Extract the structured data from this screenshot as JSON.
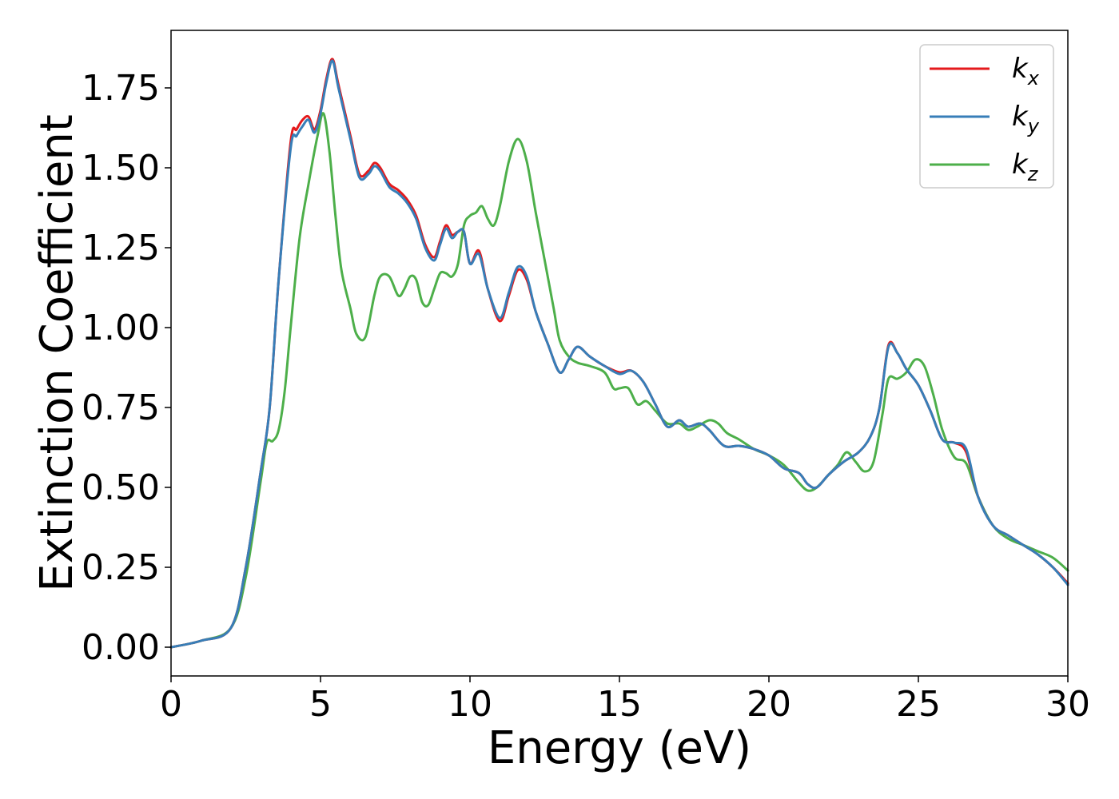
{
  "chart_data": {
    "type": "line",
    "title": "",
    "xlabel": "Energy (eV)",
    "ylabel": "Extinction Coefficient",
    "xlim": [
      0,
      30
    ],
    "ylim": [
      -0.09,
      1.93
    ],
    "xticks": [
      0,
      5,
      10,
      15,
      20,
      25,
      30
    ],
    "xtick_labels": [
      "0",
      "5",
      "10",
      "15",
      "20",
      "25",
      "30"
    ],
    "yticks": [
      0.0,
      0.25,
      0.5,
      0.75,
      1.0,
      1.25,
      1.5,
      1.75
    ],
    "ytick_labels": [
      "0.00",
      "0.25",
      "0.50",
      "0.75",
      "1.00",
      "1.25",
      "1.50",
      "1.75"
    ],
    "grid": false,
    "legend_position": "top-right",
    "series": [
      {
        "name": "k",
        "subscript": "x",
        "color": "#e41a1c",
        "x": [
          0,
          1,
          2,
          2.5,
          3,
          3.3,
          3.6,
          4,
          4.2,
          4.4,
          4.6,
          4.8,
          5.0,
          5.2,
          5.4,
          5.6,
          6.0,
          6.3,
          6.6,
          6.8,
          7.0,
          7.3,
          7.6,
          7.9,
          8.2,
          8.5,
          8.8,
          9.0,
          9.2,
          9.4,
          9.6,
          9.8,
          10.0,
          10.3,
          10.6,
          11.0,
          11.3,
          11.6,
          11.9,
          12.2,
          12.6,
          13.0,
          13.3,
          13.6,
          14.0,
          14.5,
          15.0,
          15.4,
          15.8,
          16.2,
          16.6,
          17.0,
          17.3,
          17.7,
          18.0,
          18.5,
          19.0,
          19.5,
          20.0,
          20.5,
          21.0,
          21.3,
          21.6,
          22.0,
          22.5,
          23.0,
          23.4,
          23.7,
          24.0,
          24.3,
          24.6,
          25.0,
          25.4,
          25.8,
          26.2,
          26.6,
          27.0,
          27.5,
          28.0,
          28.5,
          29.0,
          29.5,
          30.0
        ],
        "y": [
          0.0,
          0.02,
          0.06,
          0.25,
          0.55,
          0.75,
          1.15,
          1.58,
          1.62,
          1.65,
          1.66,
          1.62,
          1.68,
          1.78,
          1.84,
          1.76,
          1.6,
          1.48,
          1.49,
          1.515,
          1.5,
          1.45,
          1.43,
          1.4,
          1.35,
          1.26,
          1.22,
          1.27,
          1.32,
          1.29,
          1.3,
          1.3,
          1.2,
          1.24,
          1.12,
          1.02,
          1.1,
          1.18,
          1.15,
          1.05,
          0.95,
          0.86,
          0.9,
          0.94,
          0.91,
          0.88,
          0.86,
          0.865,
          0.83,
          0.76,
          0.69,
          0.71,
          0.69,
          0.7,
          0.68,
          0.63,
          0.63,
          0.62,
          0.6,
          0.56,
          0.545,
          0.51,
          0.5,
          0.54,
          0.58,
          0.61,
          0.66,
          0.75,
          0.945,
          0.92,
          0.87,
          0.82,
          0.74,
          0.65,
          0.64,
          0.61,
          0.47,
          0.38,
          0.35,
          0.32,
          0.29,
          0.25,
          0.2
        ]
      },
      {
        "name": "k",
        "subscript": "y",
        "color": "#377eb8",
        "x": [
          0,
          1,
          2,
          2.5,
          3,
          3.3,
          3.6,
          4,
          4.2,
          4.4,
          4.6,
          4.8,
          5.0,
          5.2,
          5.4,
          5.6,
          6.0,
          6.3,
          6.6,
          6.8,
          7.0,
          7.3,
          7.6,
          7.9,
          8.2,
          8.5,
          8.8,
          9.0,
          9.2,
          9.4,
          9.6,
          9.8,
          10.0,
          10.3,
          10.6,
          11.0,
          11.3,
          11.6,
          11.9,
          12.2,
          12.6,
          13.0,
          13.3,
          13.6,
          14.0,
          14.5,
          15.0,
          15.4,
          15.8,
          16.2,
          16.6,
          17.0,
          17.3,
          17.7,
          18.0,
          18.5,
          19.0,
          19.5,
          20.0,
          20.5,
          21.0,
          21.3,
          21.6,
          22.0,
          22.5,
          23.0,
          23.4,
          23.7,
          24.0,
          24.3,
          24.6,
          25.0,
          25.4,
          25.8,
          26.2,
          26.6,
          27.0,
          27.5,
          28.0,
          28.5,
          29.0,
          29.5,
          30.0
        ],
        "y": [
          0.0,
          0.02,
          0.06,
          0.25,
          0.55,
          0.75,
          1.15,
          1.56,
          1.6,
          1.63,
          1.65,
          1.61,
          1.67,
          1.77,
          1.835,
          1.75,
          1.59,
          1.47,
          1.48,
          1.505,
          1.49,
          1.44,
          1.42,
          1.39,
          1.34,
          1.25,
          1.21,
          1.26,
          1.31,
          1.28,
          1.3,
          1.3,
          1.2,
          1.23,
          1.12,
          1.03,
          1.11,
          1.19,
          1.16,
          1.05,
          0.95,
          0.86,
          0.9,
          0.94,
          0.91,
          0.88,
          0.855,
          0.865,
          0.83,
          0.76,
          0.69,
          0.71,
          0.69,
          0.7,
          0.68,
          0.63,
          0.63,
          0.62,
          0.6,
          0.56,
          0.545,
          0.51,
          0.5,
          0.54,
          0.58,
          0.61,
          0.66,
          0.75,
          0.94,
          0.92,
          0.87,
          0.82,
          0.74,
          0.65,
          0.64,
          0.62,
          0.47,
          0.38,
          0.35,
          0.32,
          0.29,
          0.25,
          0.195
        ]
      },
      {
        "name": "k",
        "subscript": "z",
        "color": "#4daf4a",
        "x": [
          0,
          1,
          2,
          2.5,
          3,
          3.2,
          3.4,
          3.6,
          3.8,
          4.0,
          4.3,
          4.6,
          4.9,
          5.1,
          5.3,
          5.5,
          5.7,
          6.0,
          6.2,
          6.5,
          6.8,
          7.0,
          7.3,
          7.6,
          7.8,
          8.0,
          8.2,
          8.4,
          8.6,
          8.8,
          9.0,
          9.2,
          9.4,
          9.6,
          9.8,
          10.0,
          10.2,
          10.4,
          10.6,
          10.8,
          11.0,
          11.3,
          11.6,
          11.9,
          12.2,
          12.5,
          12.8,
          13.0,
          13.3,
          13.6,
          14.0,
          14.5,
          14.8,
          15.0,
          15.3,
          15.6,
          15.9,
          16.2,
          16.6,
          17.0,
          17.3,
          17.6,
          18.0,
          18.3,
          18.6,
          19.0,
          19.5,
          20.0,
          20.5,
          21.0,
          21.3,
          21.6,
          22.0,
          22.3,
          22.6,
          22.9,
          23.2,
          23.5,
          23.8,
          24.0,
          24.3,
          24.6,
          24.9,
          25.2,
          25.5,
          25.8,
          26.2,
          26.6,
          27.0,
          27.5,
          28.0,
          28.5,
          29.0,
          29.5,
          30.0
        ],
        "y": [
          0.0,
          0.02,
          0.06,
          0.22,
          0.52,
          0.64,
          0.645,
          0.68,
          0.8,
          1.0,
          1.28,
          1.45,
          1.6,
          1.67,
          1.55,
          1.35,
          1.18,
          1.06,
          0.98,
          0.97,
          1.1,
          1.16,
          1.16,
          1.1,
          1.12,
          1.16,
          1.15,
          1.08,
          1.07,
          1.12,
          1.17,
          1.17,
          1.16,
          1.2,
          1.32,
          1.35,
          1.36,
          1.38,
          1.34,
          1.32,
          1.38,
          1.52,
          1.59,
          1.52,
          1.36,
          1.21,
          1.06,
          0.96,
          0.91,
          0.89,
          0.88,
          0.86,
          0.81,
          0.81,
          0.81,
          0.76,
          0.77,
          0.74,
          0.7,
          0.7,
          0.68,
          0.69,
          0.71,
          0.7,
          0.67,
          0.65,
          0.62,
          0.6,
          0.57,
          0.515,
          0.49,
          0.5,
          0.54,
          0.57,
          0.61,
          0.58,
          0.55,
          0.58,
          0.73,
          0.84,
          0.84,
          0.86,
          0.9,
          0.88,
          0.79,
          0.68,
          0.595,
          0.575,
          0.47,
          0.38,
          0.34,
          0.32,
          0.3,
          0.28,
          0.24
        ]
      }
    ]
  }
}
